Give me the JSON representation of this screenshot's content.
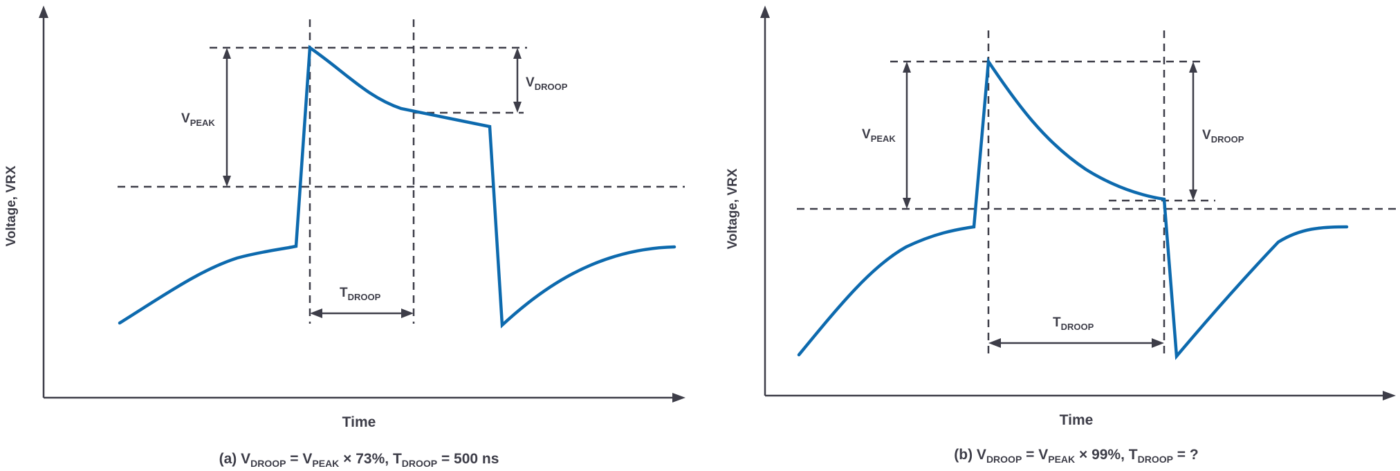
{
  "panels": [
    {
      "id": "a",
      "ylabel": "Voltage, VRX",
      "xlabel": "Time",
      "vpeak": {
        "main": "V",
        "sub": "PEAK"
      },
      "vdroop": {
        "main": "V",
        "sub": "DROOP"
      },
      "tdroop": {
        "main": "T",
        "sub": "DROOP"
      },
      "caption": {
        "prefix": "(a) ",
        "v1": "V",
        "s1": "DROOP",
        "eq1": " = ",
        "v2": "V",
        "s2": "PEAK",
        "mid": " × 73%, ",
        "v3": "T",
        "s3": "DROOP",
        "suffix": " = 500 ns"
      }
    },
    {
      "id": "b",
      "ylabel": "Voltage, VRX",
      "xlabel": "Time",
      "vpeak": {
        "main": "V",
        "sub": "PEAK"
      },
      "vdroop": {
        "main": "V",
        "sub": "DROOP"
      },
      "tdroop": {
        "main": "T",
        "sub": "DROOP"
      },
      "caption": {
        "prefix": "(b) ",
        "v1": "V",
        "s1": "DROOP",
        "eq1": " = ",
        "v2": "V",
        "s2": "PEAK",
        "mid": " × 99%, ",
        "v3": "T",
        "s3": "DROOP",
        "suffix": " = ?"
      }
    }
  ],
  "colors": {
    "waveform": "#0d6aae",
    "ink": "#3d3d48"
  }
}
